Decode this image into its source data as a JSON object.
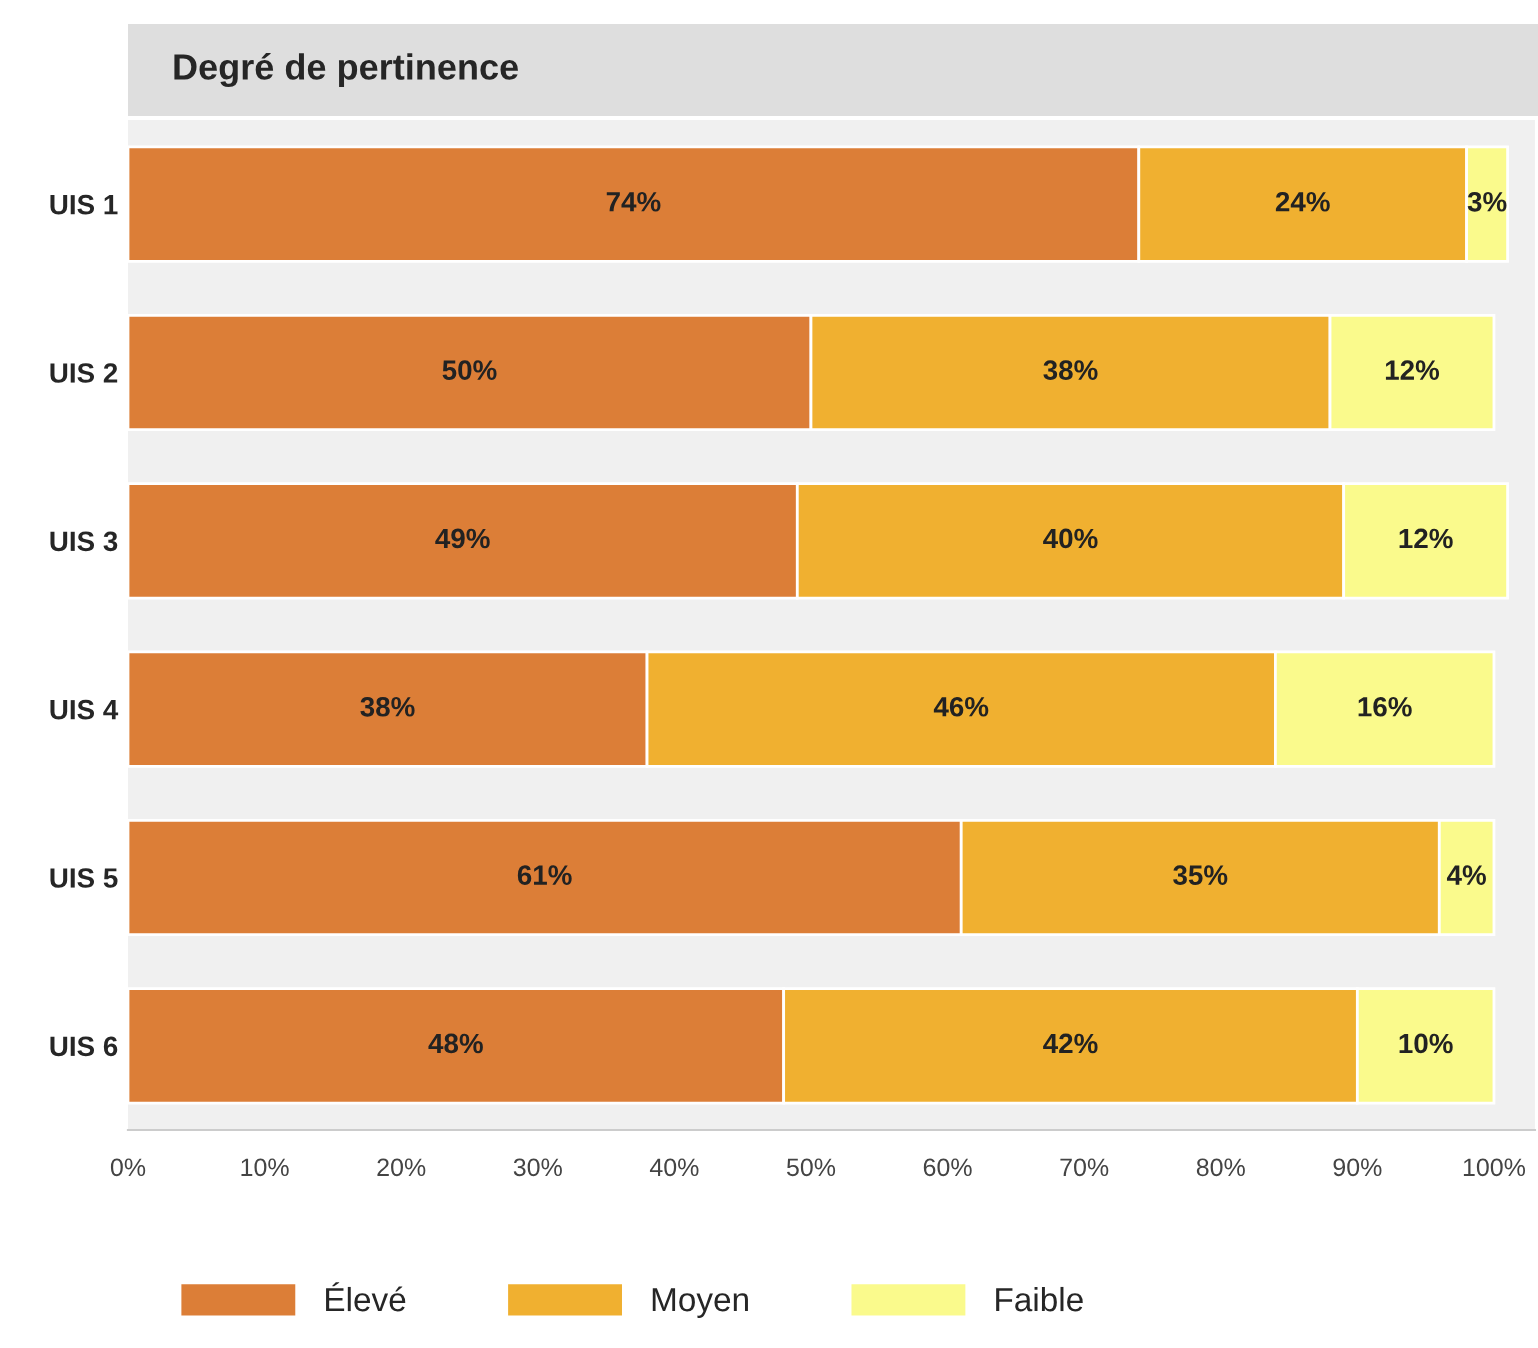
{
  "chart_data": {
    "type": "bar",
    "orientation": "horizontal",
    "stacked": true,
    "title": "Degré de pertinence",
    "categories": [
      "UIS 1",
      "UIS 2",
      "UIS 3",
      "UIS 4",
      "UIS 5",
      "UIS 6"
    ],
    "series": [
      {
        "name": "Élevé",
        "color": "#dc7e37",
        "values": [
          74,
          50,
          49,
          38,
          61,
          48
        ],
        "value_labels": [
          "74%",
          "50%",
          "49%",
          "38%",
          "61%",
          "48%"
        ]
      },
      {
        "name": "Moyen",
        "color": "#f0b030",
        "values": [
          24,
          38,
          40,
          46,
          35,
          42
        ],
        "value_labels": [
          "24%",
          "38%",
          "40%",
          "46%",
          "35%",
          "42%"
        ]
      },
      {
        "name": "Faible",
        "color": "#fafa8c",
        "values": [
          3,
          12,
          12,
          16,
          4,
          10
        ],
        "value_labels": [
          "3%",
          "12%",
          "12%",
          "16%",
          "4%",
          "10%"
        ]
      }
    ],
    "xlim": [
      0,
      103
    ],
    "xticks": [
      {
        "value": 0,
        "label": "0%"
      },
      {
        "value": 10,
        "label": "10%"
      },
      {
        "value": 20,
        "label": "20%"
      },
      {
        "value": 30,
        "label": "30%"
      },
      {
        "value": 40,
        "label": "40%"
      },
      {
        "value": 50,
        "label": "50%"
      },
      {
        "value": 60,
        "label": "60%"
      },
      {
        "value": 70,
        "label": "70%"
      },
      {
        "value": 80,
        "label": "80%"
      },
      {
        "value": 90,
        "label": "90%"
      },
      {
        "value": 100,
        "label": "100%"
      }
    ],
    "legend": "bottom left",
    "grid": false
  }
}
